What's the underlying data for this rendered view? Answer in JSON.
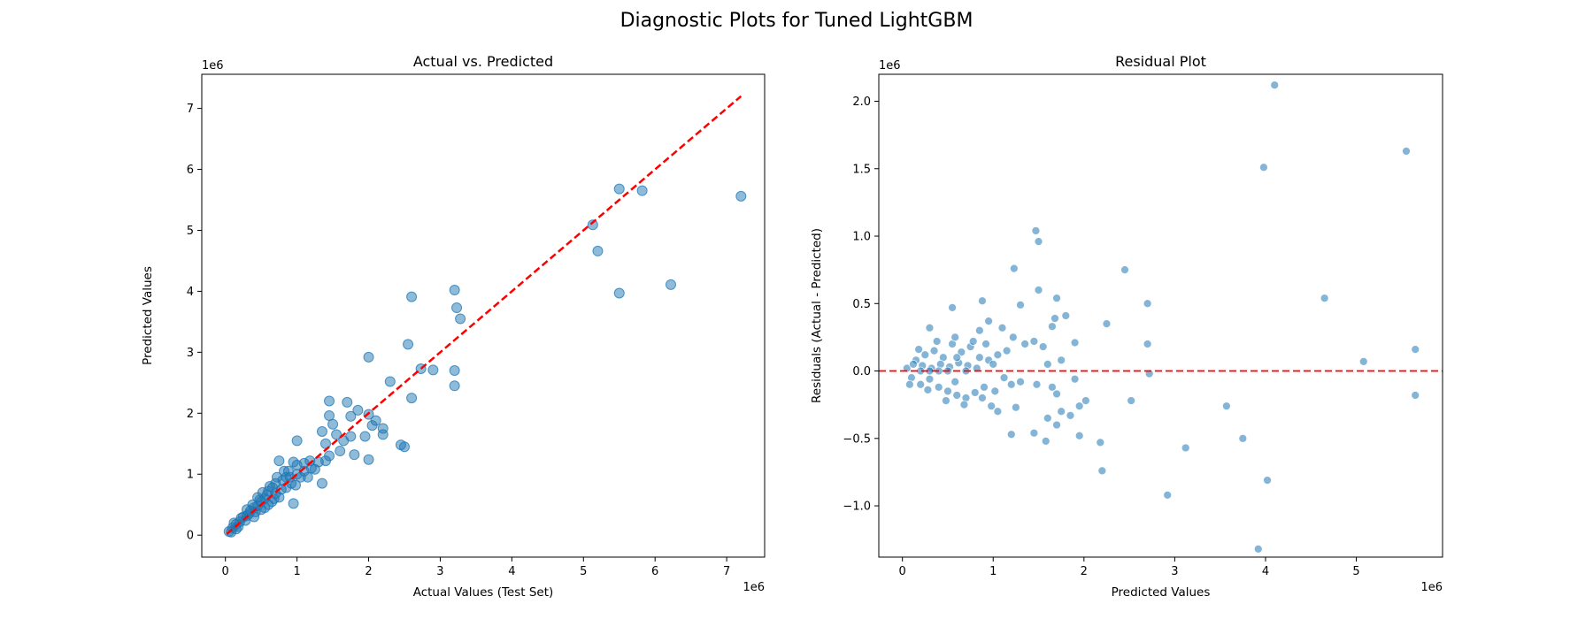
{
  "figure": {
    "suptitle": "Diagnostic Plots for Tuned LightGBM"
  },
  "chart_data": [
    {
      "type": "scatter",
      "title": "Actual vs. Predicted",
      "xlabel": "Actual Values (Test Set)",
      "ylabel": "Predicted Values",
      "xlim": [
        -0.33,
        7.53
      ],
      "ylim": [
        -0.36,
        7.56
      ],
      "x_scale_label": "1e6",
      "y_scale_label": "1e6",
      "x_ticks": [
        0,
        1,
        2,
        3,
        4,
        5,
        6,
        7
      ],
      "y_ticks": [
        0,
        1,
        2,
        3,
        4,
        5,
        6,
        7
      ],
      "grid": false,
      "point_color": "#1f77b4",
      "reference_line": {
        "style": "dashed",
        "color": "#ff0000",
        "from": [
          0.02,
          0.02
        ],
        "to": [
          7.2,
          7.2
        ]
      },
      "series": [
        {
          "points": [
            [
              5.5,
              5.68
            ],
            [
              5.82,
              5.65
            ],
            [
              7.2,
              5.56
            ],
            [
              5.13,
              5.09
            ],
            [
              5.2,
              4.66
            ],
            [
              6.22,
              4.11
            ],
            [
              5.5,
              3.97
            ],
            [
              3.2,
              4.02
            ],
            [
              2.6,
              3.91
            ],
            [
              3.23,
              3.73
            ],
            [
              3.28,
              3.55
            ],
            [
              2.55,
              3.13
            ],
            [
              2.0,
              2.92
            ],
            [
              2.73,
              2.73
            ],
            [
              2.9,
              2.71
            ],
            [
              3.2,
              2.7
            ],
            [
              2.3,
              2.52
            ],
            [
              3.2,
              2.45
            ],
            [
              2.6,
              2.25
            ],
            [
              1.45,
              2.2
            ],
            [
              1.7,
              2.18
            ],
            [
              1.85,
              2.05
            ],
            [
              1.45,
              1.96
            ],
            [
              1.75,
              1.95
            ],
            [
              2.0,
              1.98
            ],
            [
              2.1,
              1.88
            ],
            [
              1.5,
              1.82
            ],
            [
              2.05,
              1.8
            ],
            [
              2.2,
              1.75
            ],
            [
              1.35,
              1.7
            ],
            [
              1.55,
              1.65
            ],
            [
              1.75,
              1.62
            ],
            [
              2.2,
              1.65
            ],
            [
              1.95,
              1.62
            ],
            [
              1.65,
              1.55
            ],
            [
              1.4,
              1.5
            ],
            [
              2.45,
              1.48
            ],
            [
              2.5,
              1.45
            ],
            [
              1.0,
              1.55
            ],
            [
              1.6,
              1.38
            ],
            [
              1.45,
              1.3
            ],
            [
              1.8,
              1.32
            ],
            [
              2.0,
              1.24
            ],
            [
              1.4,
              1.22
            ],
            [
              1.3,
              1.2
            ],
            [
              1.1,
              1.18
            ],
            [
              1.25,
              1.08
            ],
            [
              0.75,
              1.22
            ],
            [
              1.35,
              0.85
            ],
            [
              0.95,
              0.52
            ],
            [
              1.0,
              1.0
            ],
            [
              0.9,
              0.95
            ],
            [
              0.8,
              0.9
            ],
            [
              0.85,
              0.78
            ],
            [
              0.7,
              0.85
            ],
            [
              0.6,
              0.72
            ],
            [
              0.75,
              0.62
            ],
            [
              0.55,
              0.6
            ],
            [
              0.5,
              0.55
            ],
            [
              0.45,
              0.48
            ],
            [
              0.4,
              0.45
            ],
            [
              0.35,
              0.4
            ],
            [
              0.3,
              0.32
            ],
            [
              0.25,
              0.3
            ],
            [
              0.2,
              0.22
            ],
            [
              0.15,
              0.18
            ],
            [
              0.1,
              0.12
            ],
            [
              0.05,
              0.06
            ],
            [
              0.65,
              0.55
            ],
            [
              0.7,
              0.68
            ],
            [
              0.55,
              0.45
            ],
            [
              0.48,
              0.58
            ],
            [
              0.42,
              0.38
            ],
            [
              0.38,
              0.5
            ],
            [
              0.28,
              0.24
            ],
            [
              0.62,
              0.8
            ],
            [
              0.85,
              0.95
            ],
            [
              0.92,
              0.85
            ],
            [
              1.05,
              0.95
            ],
            [
              1.1,
              1.05
            ],
            [
              1.15,
              0.95
            ],
            [
              1.2,
              1.1
            ],
            [
              0.88,
              1.05
            ],
            [
              0.78,
              0.75
            ],
            [
              0.58,
              0.66
            ],
            [
              0.33,
              0.35
            ],
            [
              0.18,
              0.14
            ],
            [
              0.12,
              0.2
            ],
            [
              0.22,
              0.28
            ],
            [
              0.5,
              0.42
            ],
            [
              0.45,
              0.62
            ],
            [
              0.68,
              0.6
            ],
            [
              0.98,
              0.82
            ],
            [
              1.0,
              1.15
            ],
            [
              0.82,
              1.05
            ],
            [
              0.72,
              0.95
            ],
            [
              1.18,
              1.22
            ],
            [
              0.95,
              1.2
            ],
            [
              0.6,
              0.5
            ],
            [
              0.3,
              0.42
            ],
            [
              0.15,
              0.1
            ],
            [
              0.08,
              0.05
            ],
            [
              0.4,
              0.3
            ],
            [
              0.52,
              0.7
            ],
            [
              0.66,
              0.78
            ]
          ]
        }
      ]
    },
    {
      "type": "scatter",
      "title": "Residual Plot",
      "xlabel": "Predicted Values",
      "ylabel": "Residuals (Actual - Predicted)",
      "xlim": [
        -0.26,
        5.95
      ],
      "ylim": [
        -1.38,
        2.2
      ],
      "x_scale_label": "1e6",
      "y_scale_label": "1e6",
      "x_ticks": [
        0,
        1,
        2,
        3,
        4,
        5
      ],
      "y_ticks": [
        -1.0,
        -0.5,
        0.0,
        0.5,
        1.0,
        1.5,
        2.0
      ],
      "grid": false,
      "point_color": "#1f77b4",
      "reference_line": {
        "style": "dashed",
        "color": "#ff0000",
        "y": 0
      },
      "series": [
        {
          "points": [
            [
              4.1,
              2.12
            ],
            [
              5.55,
              1.63
            ],
            [
              3.98,
              1.51
            ],
            [
              1.47,
              1.04
            ],
            [
              1.5,
              0.96
            ],
            [
              1.23,
              0.76
            ],
            [
              2.45,
              0.75
            ],
            [
              1.5,
              0.6
            ],
            [
              1.7,
              0.54
            ],
            [
              4.65,
              0.54
            ],
            [
              0.55,
              0.47
            ],
            [
              0.88,
              0.52
            ],
            [
              2.7,
              0.5
            ],
            [
              1.3,
              0.49
            ],
            [
              1.8,
              0.41
            ],
            [
              1.68,
              0.39
            ],
            [
              2.25,
              0.35
            ],
            [
              1.65,
              0.33
            ],
            [
              0.95,
              0.37
            ],
            [
              0.3,
              0.32
            ],
            [
              0.85,
              0.3
            ],
            [
              1.1,
              0.32
            ],
            [
              1.9,
              0.21
            ],
            [
              1.45,
              0.22
            ],
            [
              1.22,
              0.25
            ],
            [
              2.7,
              0.2
            ],
            [
              5.65,
              0.16
            ],
            [
              5.08,
              0.07
            ],
            [
              1.55,
              0.18
            ],
            [
              1.35,
              0.2
            ],
            [
              1.75,
              0.08
            ],
            [
              1.6,
              0.05
            ],
            [
              2.72,
              -0.02
            ],
            [
              1.2,
              -0.1
            ],
            [
              1.3,
              -0.08
            ],
            [
              1.65,
              -0.12
            ],
            [
              1.75,
              -0.3
            ],
            [
              1.85,
              -0.33
            ],
            [
              1.95,
              -0.26
            ],
            [
              2.02,
              -0.22
            ],
            [
              2.52,
              -0.22
            ],
            [
              1.7,
              -0.17
            ],
            [
              1.6,
              -0.35
            ],
            [
              1.9,
              -0.06
            ],
            [
              1.48,
              -0.1
            ],
            [
              1.25,
              -0.27
            ],
            [
              1.05,
              -0.3
            ],
            [
              0.98,
              -0.26
            ],
            [
              5.65,
              -0.18
            ],
            [
              3.57,
              -0.26
            ],
            [
              1.2,
              -0.47
            ],
            [
              1.45,
              -0.46
            ],
            [
              1.58,
              -0.52
            ],
            [
              1.7,
              -0.4
            ],
            [
              1.95,
              -0.48
            ],
            [
              2.18,
              -0.53
            ],
            [
              3.12,
              -0.57
            ],
            [
              3.75,
              -0.5
            ],
            [
              2.2,
              -0.74
            ],
            [
              4.02,
              -0.81
            ],
            [
              2.92,
              -0.92
            ],
            [
              3.92,
              -1.32
            ],
            [
              0.05,
              0.02
            ],
            [
              0.1,
              -0.05
            ],
            [
              0.15,
              0.08
            ],
            [
              0.2,
              -0.1
            ],
            [
              0.25,
              0.12
            ],
            [
              0.3,
              -0.06
            ],
            [
              0.35,
              0.15
            ],
            [
              0.4,
              -0.12
            ],
            [
              0.45,
              0.1
            ],
            [
              0.5,
              -0.15
            ],
            [
              0.55,
              0.2
            ],
            [
              0.6,
              -0.18
            ],
            [
              0.65,
              0.14
            ],
            [
              0.7,
              -0.2
            ],
            [
              0.75,
              0.18
            ],
            [
              0.8,
              -0.16
            ],
            [
              0.85,
              0.1
            ],
            [
              0.9,
              -0.12
            ],
            [
              0.95,
              0.08
            ],
            [
              0.12,
              0.05
            ],
            [
              0.22,
              0.04
            ],
            [
              0.32,
              0.02
            ],
            [
              0.42,
              0.05
            ],
            [
              0.52,
              0.03
            ],
            [
              0.62,
              0.06
            ],
            [
              0.72,
              0.04
            ],
            [
              0.82,
              0.02
            ],
            [
              0.28,
              -0.14
            ],
            [
              0.38,
              0.22
            ],
            [
              0.48,
              -0.22
            ],
            [
              0.58,
              0.25
            ],
            [
              0.68,
              -0.25
            ],
            [
              0.78,
              0.22
            ],
            [
              0.88,
              -0.2
            ],
            [
              0.18,
              0.16
            ],
            [
              0.08,
              -0.1
            ],
            [
              0.6,
              0.1
            ],
            [
              0.7,
              0.0
            ],
            [
              0.5,
              0.0
            ],
            [
              0.4,
              0.0
            ],
            [
              0.3,
              0.0
            ],
            [
              0.2,
              0.0
            ],
            [
              1.0,
              0.05
            ],
            [
              1.05,
              0.12
            ],
            [
              1.12,
              -0.05
            ],
            [
              1.15,
              0.15
            ],
            [
              1.02,
              -0.15
            ],
            [
              0.92,
              0.2
            ],
            [
              0.58,
              -0.08
            ]
          ]
        }
      ]
    }
  ]
}
